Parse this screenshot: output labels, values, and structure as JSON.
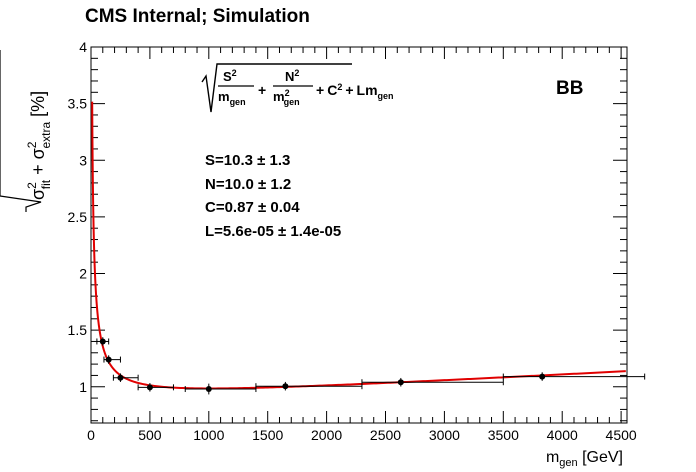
{
  "header": {
    "title": "CMS Internal; Simulation"
  },
  "chart_data": {
    "type": "scatter",
    "title": "CMS Internal; Simulation",
    "category_label": "BB",
    "xlabel": {
      "main": "m",
      "sub": "gen",
      "unit": " [GeV]"
    },
    "ylabel": {
      "prefix": "√(",
      "sigma": "σ",
      "fit_sub": "fit",
      "plus": " + ",
      "extra_sub": "extra",
      "sup": "2",
      "unit": " [%]"
    },
    "xlim": [
      0,
      4550
    ],
    "ylim": [
      0.68,
      4.0
    ],
    "xticks": [
      0,
      500,
      1000,
      1500,
      2000,
      2500,
      3000,
      3500,
      4000,
      4500
    ],
    "xtick_labels": [
      "0",
      "500",
      "1000",
      "1500",
      "2000",
      "2500",
      "3000",
      "3500",
      "4000",
      "4500"
    ],
    "yticks": [
      1,
      1.5,
      2,
      2.5,
      3,
      3.5,
      4
    ],
    "ytick_labels": [
      "1",
      "1.5",
      "2",
      "2.5",
      "3",
      "3.5",
      "4"
    ],
    "formula": {
      "S": "S",
      "N": "N",
      "two": "2",
      "m": "m",
      "gen": "gen",
      "plus": "+",
      "C": "C",
      "Lm": "Lm"
    },
    "fit_params": [
      "S=10.3 ± 1.3",
      "N=10.0 ± 1.2",
      "C=0.87 ± 0.04",
      "L=5.6e-05 ± 1.4e-05"
    ],
    "points": [
      {
        "x": 100,
        "xerr": [
          50,
          50
        ],
        "y": 1.4,
        "yerr": 0.02
      },
      {
        "x": 150,
        "xerr": [
          40,
          100
        ],
        "y": 1.24,
        "yerr": 0.02
      },
      {
        "x": 250,
        "xerr": [
          60,
          150
        ],
        "y": 1.08,
        "yerr": 0.02
      },
      {
        "x": 500,
        "xerr": [
          100,
          200
        ],
        "y": 0.995,
        "yerr": 0.02
      },
      {
        "x": 1000,
        "xerr": [
          200,
          400
        ],
        "y": 0.98,
        "yerr": 0.03
      },
      {
        "x": 1650,
        "xerr": [
          250,
          650
        ],
        "y": 1.005,
        "yerr": 0.02
      },
      {
        "x": 2630,
        "xerr": [
          330,
          870
        ],
        "y": 1.04,
        "yerr": 0.02
      },
      {
        "x": 3830,
        "xerr": [
          330,
          870
        ],
        "y": 1.09,
        "yerr": 0.02
      }
    ],
    "fit_curve": {
      "S": 10.3,
      "N": 10.0,
      "C": 0.87,
      "L": 5.6e-05,
      "x_from": 10,
      "x_to": 4550
    },
    "colors": {
      "fit": "#e00000",
      "points": "#000000",
      "axis": "#000000"
    }
  }
}
